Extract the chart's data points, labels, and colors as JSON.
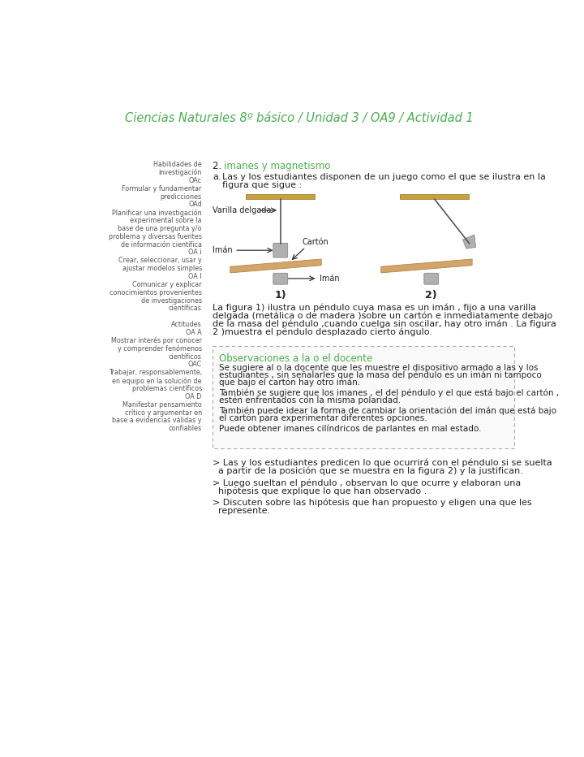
{
  "title": "Ciencias Naturales 8º básico / Unidad 3 / OA9 / Actividad 1",
  "title_color": "#4CAF50",
  "section_number": "2.",
  "section_title": "imanes y magnetismo",
  "section_title_color": "#4CAF50",
  "left_sidebar": [
    "Habilidades de",
    "investigación",
    "OAc",
    "Formular y fundamentar",
    "predicciones",
    "OAd",
    "Planificar una investigación",
    "experimental sobre la",
    "base de una pregunta y/o",
    "problema y diversas fuentes",
    "de información científica",
    "OA i",
    "Crear, seleccionar, usar y",
    "ajustar modelos simples",
    "OA l",
    "Comunicar y explicar",
    "conocimientos provenientes",
    "de investigaciones",
    "científicas",
    "",
    "Actitudes",
    "OA A",
    "Mostrar interés por conocer",
    "y comprender fenómenos",
    "científicos",
    "OAC",
    "Trabajar, responsablemente,",
    "en equipo en la solución de",
    "problemas científicos",
    "OA D",
    "Manifestar pensamiento",
    "crítico y argumentar en",
    "base a evidencias válidas y",
    "confiables"
  ],
  "item_a_line1": "Las y los estudiantes disponen de un juego como el que se ilustra en la",
  "item_a_line2": "figura que sigue :",
  "label_varilla": "Varilla delgada",
  "label_iman1": "Imán",
  "label_iman2": "Imán",
  "label_carbon": "Cartón",
  "label_1": "1)",
  "label_2": "2)",
  "figure_desc_lines": [
    "La figura 1) ilustra un péndulo cuya masa es un imán , fijo a una varilla",
    "delgada (metálica o de madera )sobre un cartón e inmediatamente debajo",
    "de la masa del péndulo ,cuando cuelga sin oscilar, hay otro imán . La figura",
    "2 )muestra el péndulo desplazado cierto ángulo."
  ],
  "observation_title": "Observaciones a la o el docente",
  "observation_title_color": "#4CAF50",
  "obs_lines": [
    "Se sugiere al o la docente que les muestre el dispositivo armado a las y los",
    "estudiantes , sin señalarles que la masa del péndulo es un imán ni tampoco",
    "que bajo el cartón hay otro imán.",
    "",
    "También se sugiere que los imanes , el del péndulo y el que está bajo el cartón ,",
    "estén enfrentados con la misma polaridad.",
    "",
    "También puede idear la forma de cambiar la orientación del imán que está bajo",
    "el cartón para experimentar diferentes opciones.",
    "",
    "Puede obtener imanes cilíndricos de parlantes en mal estado."
  ],
  "bullet_lines": [
    [
      "> Las y los estudiantes predicen lo que ocurrirá con el péndulo si se suelta",
      "  a partir de la posición que se muestra en la figura 2) y la justifican."
    ],
    [
      "> Luego sueltan el péndulo , observan lo que ocurre y elaboran una",
      "  hipótesis que explique lo que han observado ."
    ],
    [
      "> Discuten sobre las hipótesis que han propuesto y eligen una que les",
      "  represente."
    ]
  ],
  "bg_color": "#ffffff",
  "text_color": "#222222",
  "sidebar_color": "#555555",
  "obs_border_color": "#aaaaaa",
  "carton_color": "#D4A56A",
  "bar_color": "#C8A040",
  "magnet_color": "#b0b0b0",
  "magnet_edge": "#888888"
}
